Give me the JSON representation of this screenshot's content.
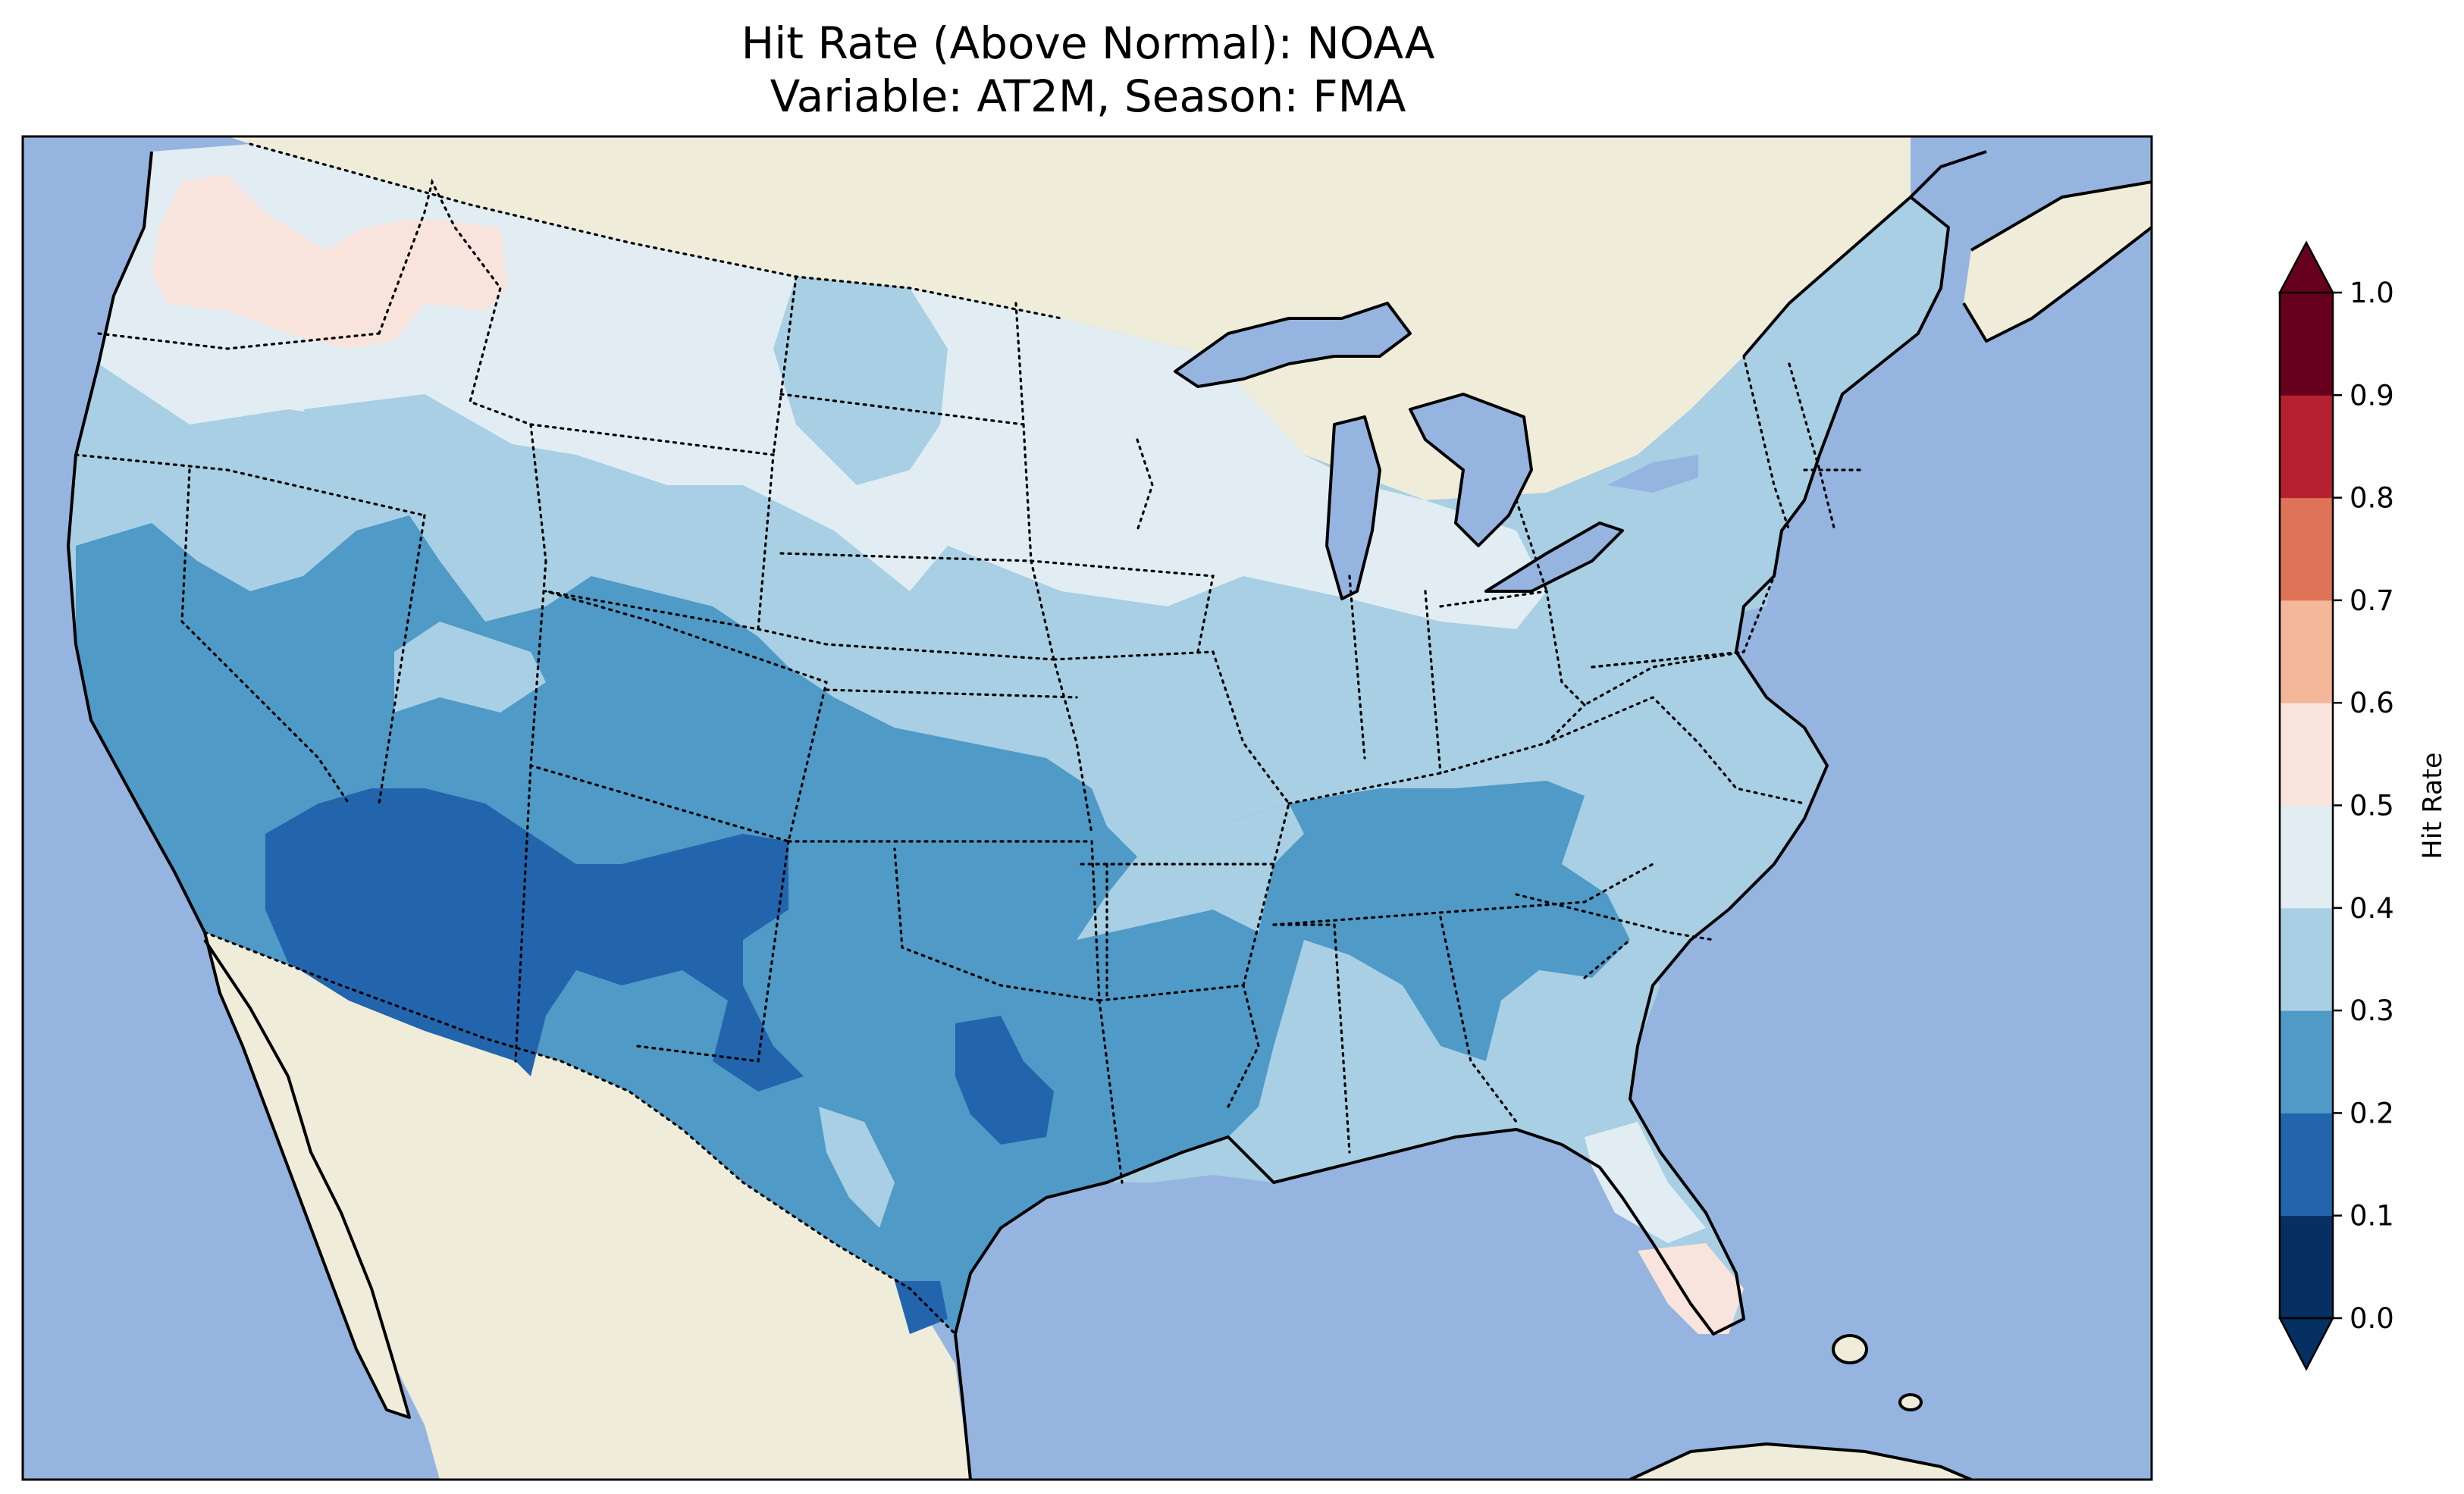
{
  "title": {
    "line1": "Hit Rate (Above Normal): NOAA",
    "line2": "Variable: AT2M, Season: FMA"
  },
  "colors": {
    "ocean": "#95b4e0",
    "land": "#efedda",
    "bins": [
      "#053061",
      "#2265ad",
      "#4f9ac7",
      "#a8cfe3",
      "#e1edf3",
      "#f8e4dc",
      "#f5b799",
      "#df7357",
      "#b6212f",
      "#67001f"
    ]
  },
  "colorbar": {
    "label": "Hit Rate",
    "ticks": [
      "0.0",
      "0.1",
      "0.2",
      "0.3",
      "0.4",
      "0.5",
      "0.6",
      "0.7",
      "0.8",
      "0.9",
      "1.0"
    ],
    "extend": "both"
  },
  "regions": [
    {
      "name": "pacific-northwest",
      "hit_rate_range": "0.5-0.6"
    },
    {
      "name": "northern-tier",
      "hit_rate_range": "0.4-0.5"
    },
    {
      "name": "central-plains-and-great-lakes",
      "hit_rate_range": "0.3-0.4"
    },
    {
      "name": "california-and-great-basin",
      "hit_rate_range": "0.2-0.3"
    },
    {
      "name": "desert-southwest",
      "hit_rate_range": "0.1-0.2"
    },
    {
      "name": "texas-and-southern-plains",
      "hit_rate_range": "0.2-0.3"
    },
    {
      "name": "tennessee-valley",
      "hit_rate_range": "0.2-0.3"
    },
    {
      "name": "southeast",
      "hit_rate_range": "0.3-0.4"
    },
    {
      "name": "south-florida",
      "hit_rate_range": "0.5-0.6"
    }
  ]
}
